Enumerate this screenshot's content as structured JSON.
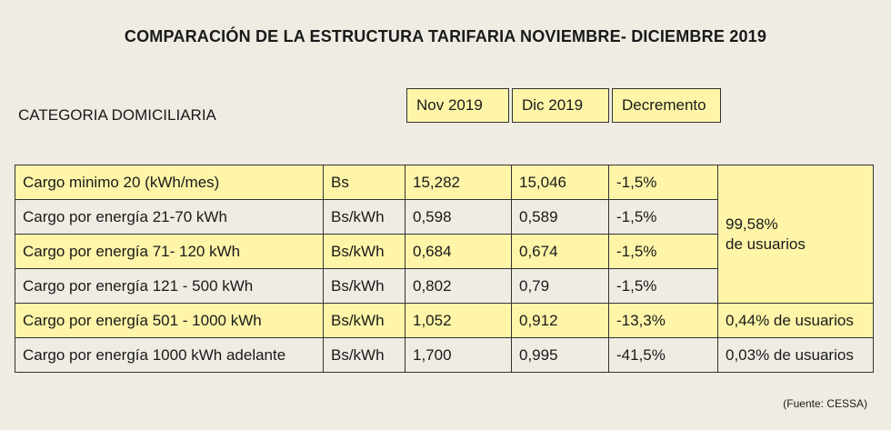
{
  "title": "COMPARACIÓN DE LA ESTRUCTURA TARIFARIA NOVIEMBRE- DICIEMBRE 2019",
  "category": "CATEGORIA DOMICILIARIA",
  "headers": [
    "Nov 2019",
    "Dic 2019",
    "Decremento"
  ],
  "rows": [
    {
      "concept": "Cargo minimo 20 (kWh/mes)",
      "unit": "Bs",
      "nov": "15,282",
      "dic": "15,046",
      "dec": "-1,5%"
    },
    {
      "concept": "Cargo por energía 21-70 kWh",
      "unit": "Bs/kWh",
      "nov": "0,598",
      "dic": "0,589",
      "dec": "-1,5%"
    },
    {
      "concept": "Cargo por energía 71- 120 kWh",
      "unit": "Bs/kWh",
      "nov": "0,684",
      "dic": "0,674",
      "dec": "-1,5%"
    },
    {
      "concept": "Cargo por energía 121 - 500 kWh",
      "unit": "Bs/kWh",
      "nov": "0,802",
      "dic": "0,79",
      "dec": "-1,5%"
    },
    {
      "concept": "Cargo por energía 501 - 1000 kWh",
      "unit": "Bs/kWh",
      "nov": "1,052",
      "dic": "0,912",
      "dec": "-13,3%"
    },
    {
      "concept": "Cargo por energía 1000 kWh adelante",
      "unit": "Bs/kWh",
      "nov": "1,700",
      "dic": "0,995",
      "dec": "-41,5%"
    }
  ],
  "users": {
    "group_line1": "99,58%",
    "group_line2": "de usuarios",
    "row5": "0,44% de usuarios",
    "row6": "0,03% de usuarios"
  },
  "source": "(Fuente: CESSA)",
  "colors": {
    "yellow": "#fff5a8",
    "background": "#efece3",
    "border": "#333333"
  }
}
